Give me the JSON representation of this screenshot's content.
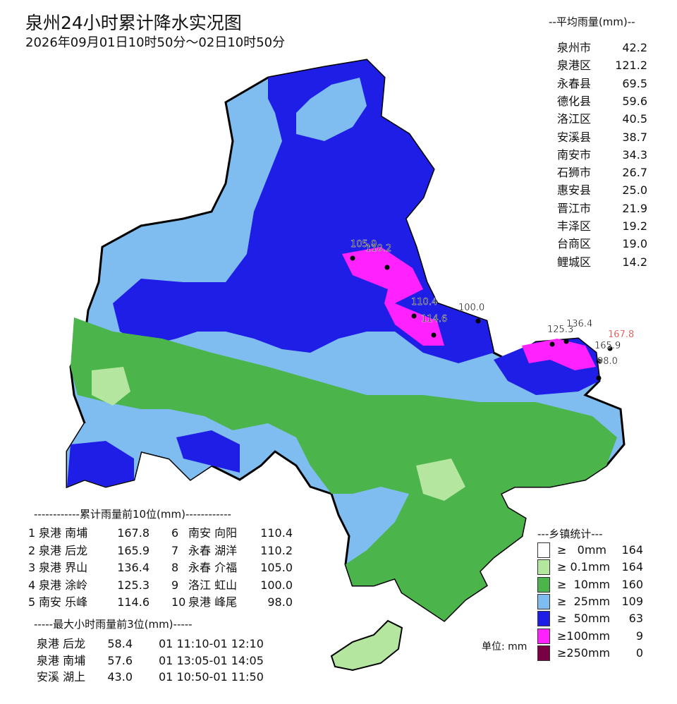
{
  "title": "泉州24小时累计降水实况图",
  "subtitle": "2026年09月01日10时50分～02日10时50分",
  "average": {
    "title": "--平均雨量(mm)--",
    "rows": [
      [
        "泉州市",
        "42.2"
      ],
      [
        "泉港区",
        "121.2"
      ],
      [
        "永春县",
        "69.5"
      ],
      [
        "德化县",
        "59.6"
      ],
      [
        "洛江区",
        "40.5"
      ],
      [
        "安溪县",
        "38.7"
      ],
      [
        "南安市",
        "34.3"
      ],
      [
        "石狮市",
        "26.7"
      ],
      [
        "惠安县",
        "25.0"
      ],
      [
        "晋江市",
        "21.9"
      ],
      [
        "丰泽区",
        "19.2"
      ],
      [
        "台商区",
        "19.0"
      ],
      [
        "鲤城区",
        "14.2"
      ]
    ]
  },
  "top10": {
    "title": "------------累计雨量前10位(mm)------------",
    "rows": [
      [
        "1",
        "泉港 南埔",
        "167.8"
      ],
      [
        "2",
        "泉港 后龙",
        "165.9"
      ],
      [
        "3",
        "泉港 界山",
        "136.4"
      ],
      [
        "4",
        "泉港 涂岭",
        "125.3"
      ],
      [
        "5",
        "南安 乐峰",
        "114.6"
      ],
      [
        "6",
        "南安 向阳",
        "110.4"
      ],
      [
        "7",
        "永春 湖洋",
        "110.2"
      ],
      [
        "8",
        "永春 介福",
        "105.0"
      ],
      [
        "9",
        "洛江 虹山",
        "100.0"
      ],
      [
        "10",
        "泉港 峰尾",
        "98.0"
      ]
    ]
  },
  "top3": {
    "title": "-----最大小时雨量前3位(mm)-----",
    "rows": [
      [
        "泉港 后龙",
        "58.4",
        "01 11:10-01 12:10"
      ],
      [
        "泉港 南埔",
        "57.6",
        "01 13:05-01 14:05"
      ],
      [
        "安溪 湖上",
        "43.0",
        "01 10:50-01 11:50"
      ]
    ]
  },
  "legend": {
    "title": "---乡镇统计---",
    "items": [
      {
        "label": "≥   0mm",
        "count": "164",
        "color": "#ffffff"
      },
      {
        "label": "≥ 0.1mm",
        "count": "164",
        "color": "#b4e6a0"
      },
      {
        "label": "≥  10mm",
        "count": "160",
        "color": "#4bb54b"
      },
      {
        "label": "≥  25mm",
        "count": "109",
        "color": "#7fbcf0"
      },
      {
        "label": "≥  50mm",
        "count": "63",
        "color": "#1e1ee6"
      },
      {
        "label": "≥100mm",
        "count": "9",
        "color": "#ff22ff"
      },
      {
        "label": "≥250mm",
        "count": "0",
        "color": "#7a0044"
      }
    ]
  },
  "unit": "单位: mm",
  "stations": [
    {
      "label": "105.0"
    },
    {
      "label": "110.2"
    },
    {
      "label": "110.4"
    },
    {
      "label": "100.0"
    },
    {
      "label": "114.6"
    },
    {
      "label": "125.3"
    },
    {
      "label": "136.4"
    },
    {
      "label": "167.8",
      "color": "#e01010"
    },
    {
      "label": "165.9"
    },
    {
      "label": "98.0"
    }
  ]
}
